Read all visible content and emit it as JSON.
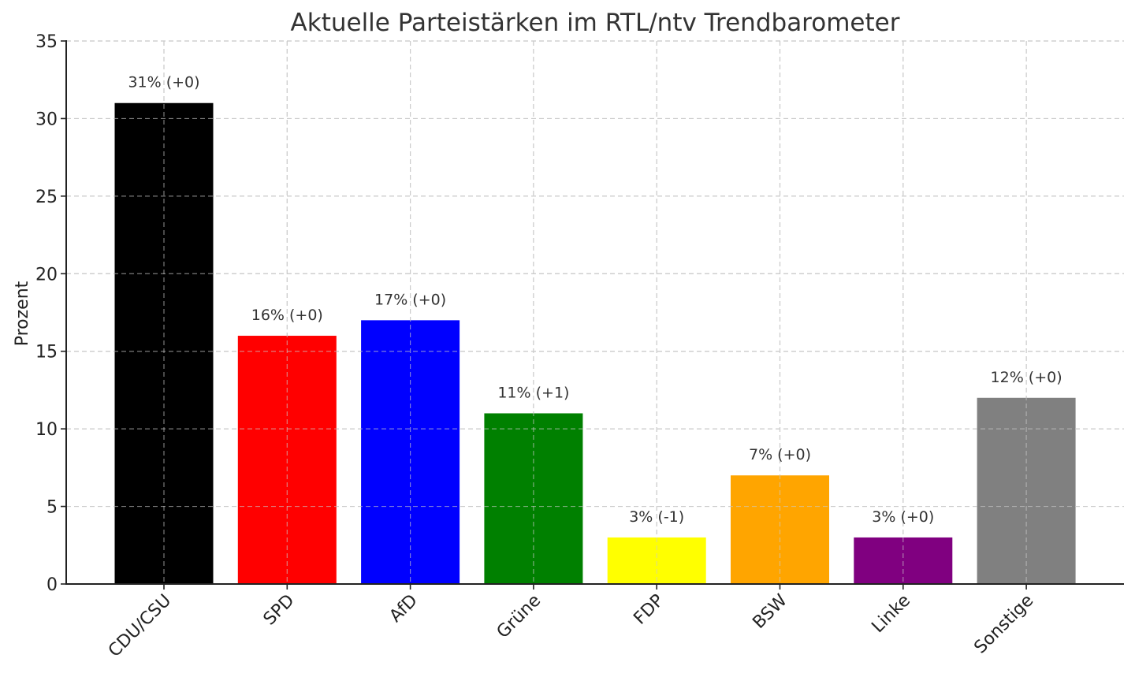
{
  "chart_data": {
    "type": "bar",
    "title": "Aktuelle Parteistärken im RTL/ntv Trendbarometer",
    "xlabel": "",
    "ylabel": "Prozent",
    "ylim": [
      0,
      35
    ],
    "yticks": [
      0,
      5,
      10,
      15,
      20,
      25,
      30,
      35
    ],
    "grid": true,
    "grid_style": "dashed",
    "legend": null,
    "categories": [
      "CDU/CSU",
      "SPD",
      "AfD",
      "Grüne",
      "FDP",
      "BSW",
      "Linke",
      "Sonstige"
    ],
    "values": [
      31,
      16,
      17,
      11,
      3,
      7,
      3,
      12
    ],
    "changes": [
      "+0",
      "+0",
      "+0",
      "+1",
      "-1",
      "+0",
      "+0",
      "+0"
    ],
    "bar_labels": [
      "31% (+0)",
      "16% (+0)",
      "17% (+0)",
      "11% (+1)",
      "3% (-1)",
      "7% (+0)",
      "3% (+0)",
      "12% (+0)"
    ],
    "colors": [
      "#000000",
      "#ff0000",
      "#0000ff",
      "#008000",
      "#ffff00",
      "#ffa500",
      "#800080",
      "#808080"
    ],
    "xtick_rotation": 45
  }
}
